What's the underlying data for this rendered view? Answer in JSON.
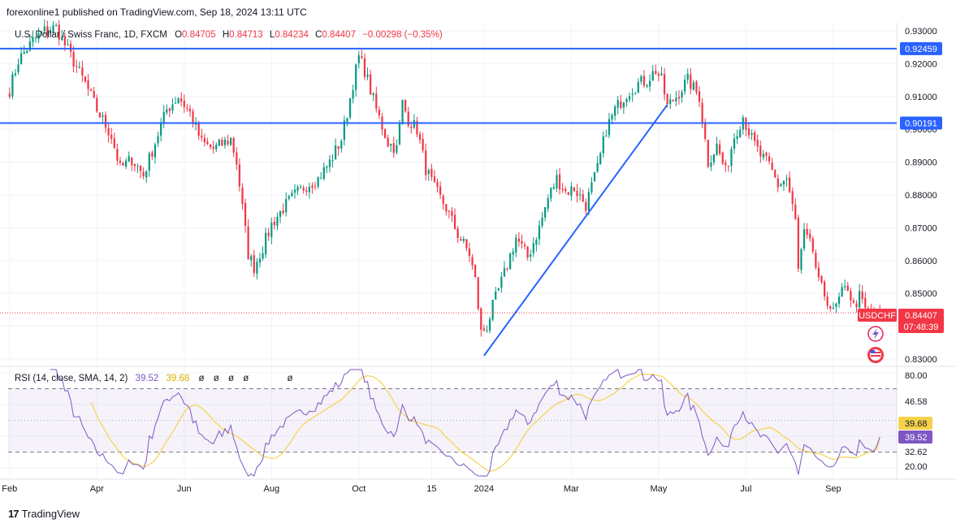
{
  "header": {
    "publisher_line": "forexonline1 published on TradingView.com, Sep 18, 2024 13:11 UTC"
  },
  "legend": {
    "symbol": "U.S. Dollar / Swiss Franc, 1D, FXCM",
    "o_label": "O",
    "o": "0.84705",
    "h_label": "H",
    "h": "0.84713",
    "l_label": "L",
    "l": "0.84234",
    "c_label": "C",
    "c": "0.84407",
    "change": "−0.00298 (−0.35%)"
  },
  "badges": {
    "ticker": "USDCHF",
    "price": "0.84407",
    "countdown": "07:48:39",
    "level_top": "0.92459",
    "level_mid": "0.90191"
  },
  "rsi_legend": {
    "label": "RSI (14, close, SMA, 14, 2)",
    "rsi": "39.52",
    "sma": "39.68",
    "na": [
      "ø",
      "ø",
      "ø",
      "ø",
      "ø"
    ]
  },
  "rsi_axis": {
    "ticks": [
      "80.00",
      "46.58",
      "39.68",
      "39.52",
      "32.62",
      "20.00"
    ]
  },
  "footer": {
    "brand": "TradingView"
  },
  "colors": {
    "up": "#089981",
    "down": "#f23645",
    "line": "#2962ff",
    "rsi": "#7e57c2",
    "rsi_sma": "#f6d24a",
    "grid": "#f0f3fa"
  },
  "chart_data": [
    {
      "type": "candlestick",
      "title": "U.S. Dollar / Swiss Franc, 1D, FXCM",
      "ylim": [
        0.828,
        0.932
      ],
      "y_ticks": [
        0.83,
        0.84,
        0.85,
        0.86,
        0.87,
        0.88,
        0.89,
        0.9,
        0.91,
        0.92,
        0.93
      ],
      "y_tick_labels": [
        "0.83000",
        "",
        "0.85000",
        "0.86000",
        "0.87000",
        "0.88000",
        "0.89000",
        "0.90000",
        "0.91000",
        "0.92000",
        "0.93000"
      ],
      "x_tick_labels": [
        "Feb",
        "Apr",
        "Jun",
        "Aug",
        "Oct",
        "15",
        "2024",
        "Mar",
        "May",
        "Jul",
        "Sep"
      ],
      "x_tick_index": [
        0,
        30,
        60,
        90,
        120,
        145,
        163,
        193,
        223,
        253,
        283
      ],
      "bars": 300,
      "path": [
        [
          0,
          0.912
        ],
        [
          3,
          0.921
        ],
        [
          8,
          0.927
        ],
        [
          12,
          0.93
        ],
        [
          16,
          0.931
        ],
        [
          20,
          0.924
        ],
        [
          26,
          0.914
        ],
        [
          30,
          0.906
        ],
        [
          35,
          0.898
        ],
        [
          38,
          0.888
        ],
        [
          42,
          0.891
        ],
        [
          46,
          0.886
        ],
        [
          50,
          0.896
        ],
        [
          54,
          0.906
        ],
        [
          58,
          0.91
        ],
        [
          62,
          0.905
        ],
        [
          66,
          0.896
        ],
        [
          70,
          0.894
        ],
        [
          74,
          0.896
        ],
        [
          76,
          0.897
        ],
        [
          78,
          0.89
        ],
        [
          80,
          0.876
        ],
        [
          82,
          0.862
        ],
        [
          84,
          0.858
        ],
        [
          87,
          0.864
        ],
        [
          90,
          0.871
        ],
        [
          94,
          0.876
        ],
        [
          98,
          0.88
        ],
        [
          102,
          0.883
        ],
        [
          106,
          0.885
        ],
        [
          110,
          0.89
        ],
        [
          114,
          0.897
        ],
        [
          116,
          0.905
        ],
        [
          118,
          0.914
        ],
        [
          120,
          0.922
        ],
        [
          122,
          0.918
        ],
        [
          126,
          0.906
        ],
        [
          130,
          0.896
        ],
        [
          133,
          0.894
        ],
        [
          135,
          0.908
        ],
        [
          137,
          0.903
        ],
        [
          140,
          0.9
        ],
        [
          143,
          0.888
        ],
        [
          146,
          0.882
        ],
        [
          150,
          0.876
        ],
        [
          154,
          0.868
        ],
        [
          158,
          0.862
        ],
        [
          160,
          0.854
        ],
        [
          162,
          0.838
        ],
        [
          164,
          0.84
        ],
        [
          166,
          0.846
        ],
        [
          168,
          0.851
        ],
        [
          170,
          0.856
        ],
        [
          174,
          0.867
        ],
        [
          178,
          0.861
        ],
        [
          182,
          0.87
        ],
        [
          185,
          0.879
        ],
        [
          188,
          0.885
        ],
        [
          191,
          0.881
        ],
        [
          194,
          0.882
        ],
        [
          198,
          0.877
        ],
        [
          202,
          0.888
        ],
        [
          205,
          0.9
        ],
        [
          208,
          0.906
        ],
        [
          212,
          0.911
        ],
        [
          216,
          0.914
        ],
        [
          219,
          0.915
        ],
        [
          222,
          0.918
        ],
        [
          224,
          0.915
        ],
        [
          226,
          0.907
        ],
        [
          229,
          0.91
        ],
        [
          233,
          0.915
        ],
        [
          237,
          0.91
        ],
        [
          240,
          0.89
        ],
        [
          243,
          0.895
        ],
        [
          246,
          0.887
        ],
        [
          249,
          0.898
        ],
        [
          252,
          0.904
        ],
        [
          255,
          0.897
        ],
        [
          258,
          0.892
        ],
        [
          261,
          0.889
        ],
        [
          264,
          0.883
        ],
        [
          267,
          0.885
        ],
        [
          270,
          0.872
        ],
        [
          271,
          0.857
        ],
        [
          273,
          0.868
        ],
        [
          276,
          0.863
        ],
        [
          278,
          0.853
        ],
        [
          281,
          0.848
        ],
        [
          283,
          0.844
        ],
        [
          286,
          0.85
        ],
        [
          288,
          0.852
        ],
        [
          290,
          0.846
        ],
        [
          292,
          0.849
        ],
        [
          294,
          0.845
        ],
        [
          296,
          0.844
        ]
      ],
      "horizontal_levels": [
        {
          "value": 0.92459,
          "label": "0.92459"
        },
        {
          "value": 0.90191,
          "label": "0.90191"
        }
      ],
      "trendline": {
        "from": [
          163,
          0.831
        ],
        "to": [
          226,
          0.9075
        ]
      },
      "last_price": {
        "value": 0.84407,
        "label": "0.84407",
        "ticker": "USDCHF",
        "countdown": "07:48:39"
      }
    },
    {
      "type": "line",
      "title": "RSI (14, close, SMA, 14, 2)",
      "ylim": [
        15,
        82
      ],
      "band": [
        30,
        70
      ],
      "series": [
        {
          "name": "RSI",
          "color": "#7e57c2"
        },
        {
          "name": "SMA",
          "color": "#f6d24a"
        }
      ],
      "last": {
        "rsi": 39.52,
        "sma": 39.68
      }
    }
  ]
}
